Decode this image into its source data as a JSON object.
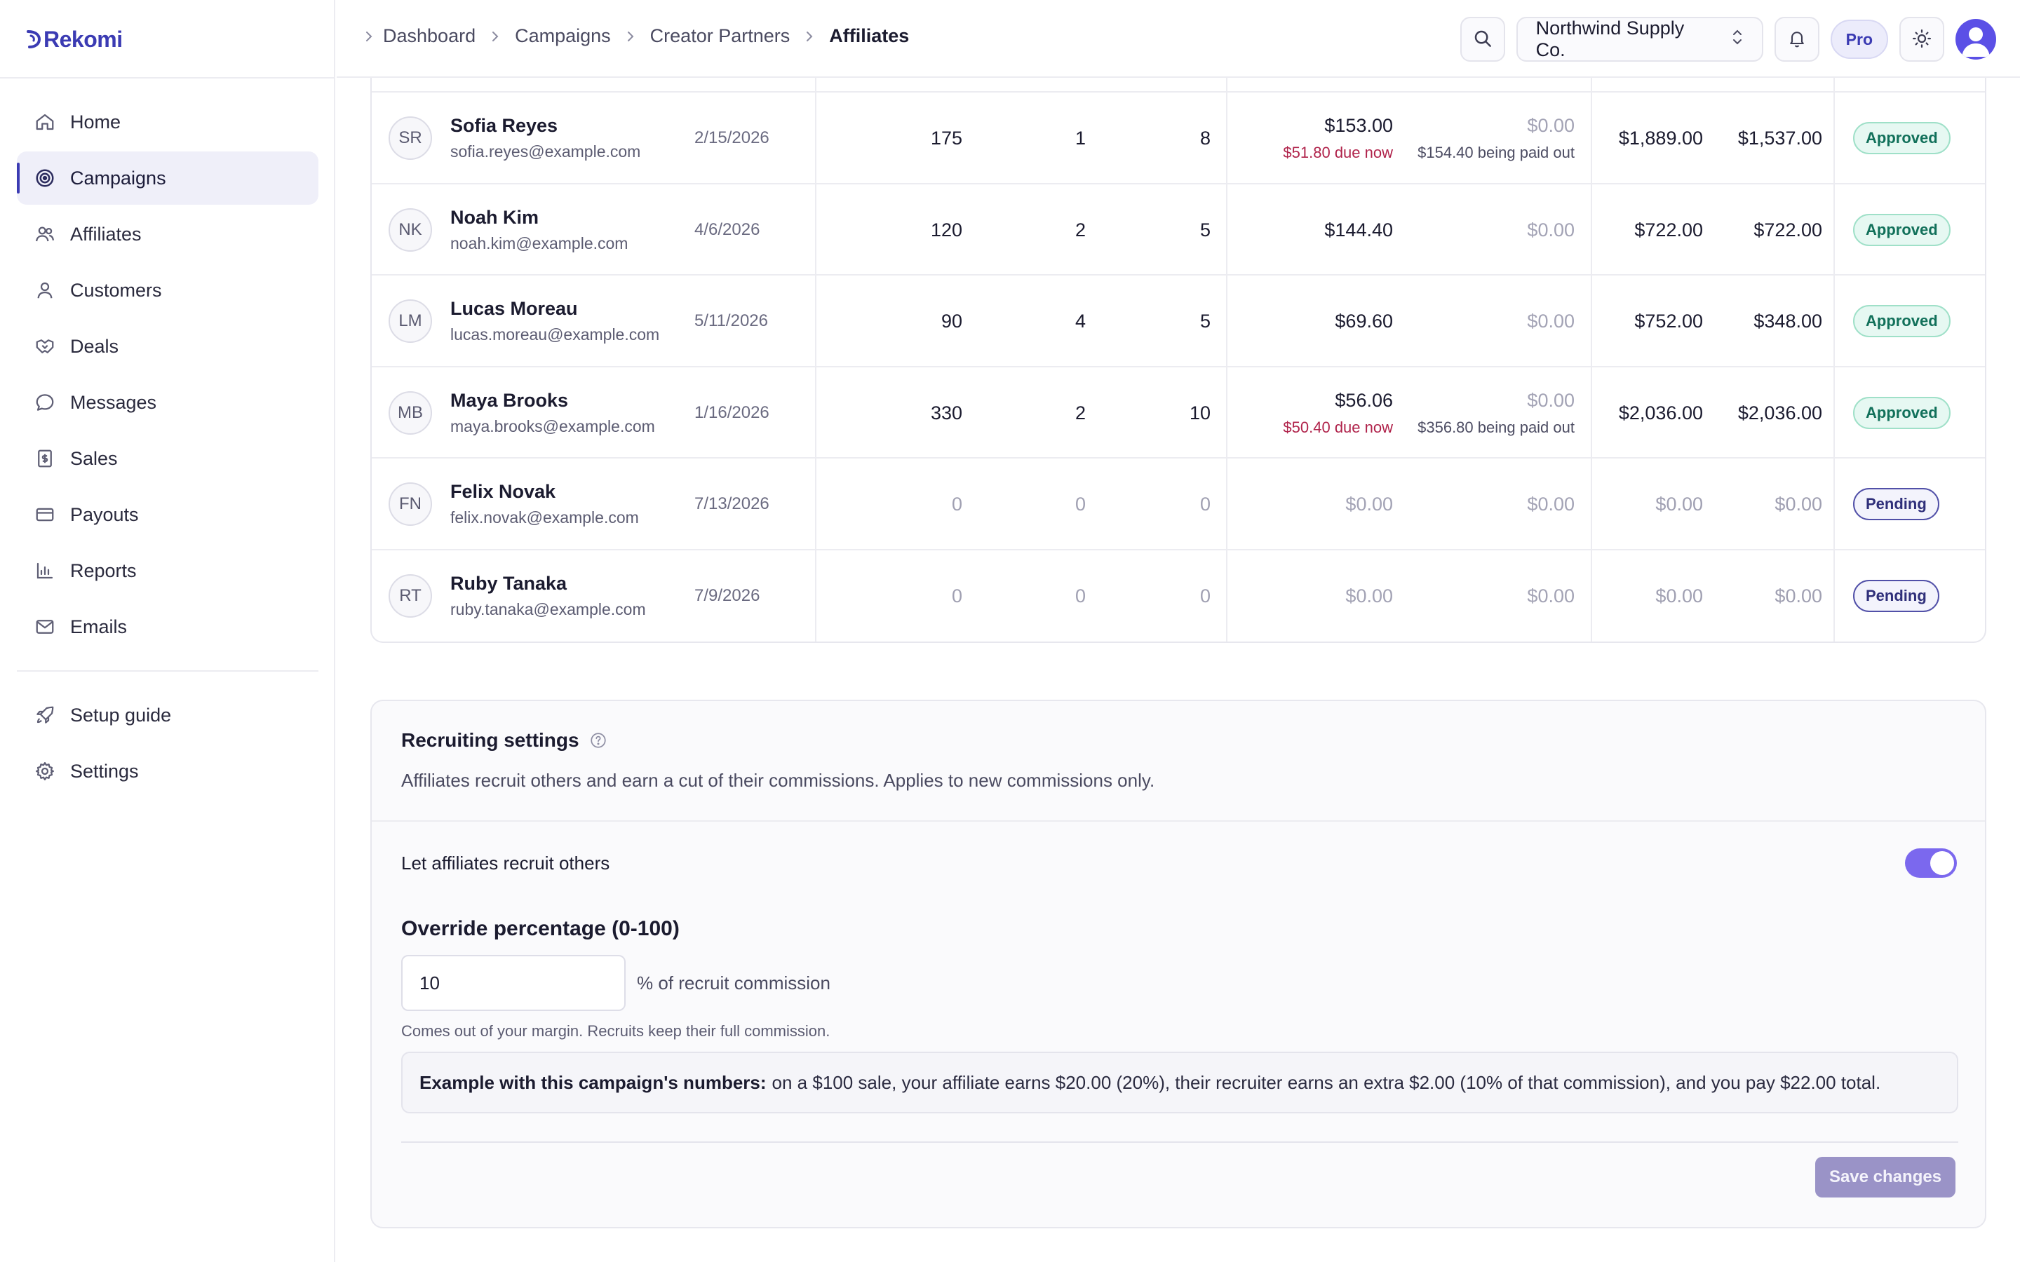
{
  "brand": {
    "name": "Rekomi",
    "accent": "#3b3bb3"
  },
  "sidebar": {
    "items": [
      {
        "label": "Home",
        "icon": "home-icon",
        "active": false
      },
      {
        "label": "Campaigns",
        "icon": "target-icon",
        "active": true
      },
      {
        "label": "Affiliates",
        "icon": "users-icon",
        "active": false
      },
      {
        "label": "Customers",
        "icon": "user-icon",
        "active": false
      },
      {
        "label": "Deals",
        "icon": "handshake-icon",
        "active": false
      },
      {
        "label": "Messages",
        "icon": "chat-icon",
        "active": false
      },
      {
        "label": "Sales",
        "icon": "receipt-icon",
        "active": false
      },
      {
        "label": "Payouts",
        "icon": "card-icon",
        "active": false
      },
      {
        "label": "Reports",
        "icon": "chart-icon",
        "active": false
      },
      {
        "label": "Emails",
        "icon": "mail-icon",
        "active": false
      }
    ],
    "secondary": [
      {
        "label": "Setup guide",
        "icon": "rocket-icon"
      },
      {
        "label": "Settings",
        "icon": "gear-icon"
      }
    ]
  },
  "breadcrumb": [
    "Dashboard",
    "Campaigns",
    "Creator Partners",
    "Affiliates"
  ],
  "topbar": {
    "org": "Northwind Supply Co.",
    "plan": "Pro"
  },
  "affiliates": [
    {
      "initials": "SR",
      "name": "Sofia Reyes",
      "email": "sofia.reyes@example.com",
      "date": "2/15/2026",
      "clicks": "175",
      "leads": "1",
      "sales": "8",
      "unpaid": "$153.00",
      "unpaid_note": "$51.80 due now",
      "paid": "$0.00",
      "paid_note": "$154.40 being paid out",
      "revenue": "$1,889.00",
      "net": "$1,537.00",
      "status": "Approved"
    },
    {
      "initials": "NK",
      "name": "Noah Kim",
      "email": "noah.kim@example.com",
      "date": "4/6/2026",
      "clicks": "120",
      "leads": "2",
      "sales": "5",
      "unpaid": "$144.40",
      "unpaid_note": "",
      "paid": "$0.00",
      "paid_note": "",
      "revenue": "$722.00",
      "net": "$722.00",
      "status": "Approved"
    },
    {
      "initials": "LM",
      "name": "Lucas Moreau",
      "email": "lucas.moreau@example.com",
      "date": "5/11/2026",
      "clicks": "90",
      "leads": "4",
      "sales": "5",
      "unpaid": "$69.60",
      "unpaid_note": "",
      "paid": "$0.00",
      "paid_note": "",
      "revenue": "$752.00",
      "net": "$348.00",
      "status": "Approved"
    },
    {
      "initials": "MB",
      "name": "Maya Brooks",
      "email": "maya.brooks@example.com",
      "date": "1/16/2026",
      "clicks": "330",
      "leads": "2",
      "sales": "10",
      "unpaid": "$56.06",
      "unpaid_note": "$50.40 due now",
      "paid": "$0.00",
      "paid_note": "$356.80 being paid out",
      "revenue": "$2,036.00",
      "net": "$2,036.00",
      "status": "Approved"
    },
    {
      "initials": "FN",
      "name": "Felix Novak",
      "email": "felix.novak@example.com",
      "date": "7/13/2026",
      "clicks": "0",
      "leads": "0",
      "sales": "0",
      "unpaid": "$0.00",
      "unpaid_note": "",
      "paid": "$0.00",
      "paid_note": "",
      "revenue": "$0.00",
      "net": "$0.00",
      "status": "Pending"
    },
    {
      "initials": "RT",
      "name": "Ruby Tanaka",
      "email": "ruby.tanaka@example.com",
      "date": "7/9/2026",
      "clicks": "0",
      "leads": "0",
      "sales": "0",
      "unpaid": "$0.00",
      "unpaid_note": "",
      "paid": "$0.00",
      "paid_note": "",
      "revenue": "$0.00",
      "net": "$0.00",
      "status": "Pending"
    }
  ],
  "recruiting": {
    "title": "Recruiting settings",
    "description": "Affiliates recruit others and earn a cut of their commissions. Applies to new commissions only.",
    "toggle_label": "Let affiliates recruit others",
    "toggle_on": true,
    "override_label": "Override percentage (0-100)",
    "override_value": "10",
    "override_suffix": "% of recruit commission",
    "hint": "Comes out of your margin. Recruits keep their full commission.",
    "example_prefix": "Example with this campaign's numbers:",
    "example_text": "on a $100 sale, your affiliate earns $20.00 (20%), their recruiter earns an extra $2.00 (10% of that commission), and you pay $22.00 total.",
    "save_label": "Save changes"
  }
}
